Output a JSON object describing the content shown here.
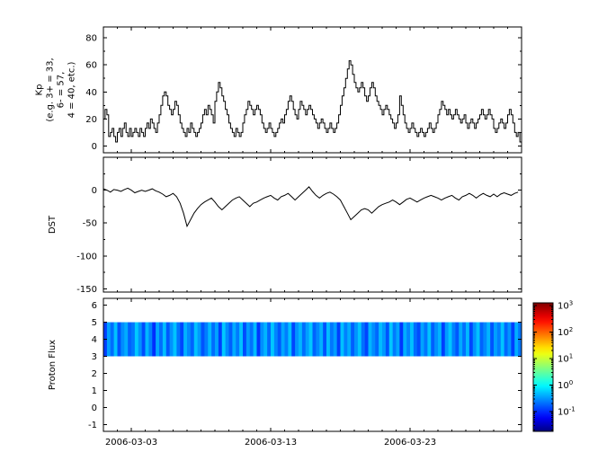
{
  "x_axis": {
    "start_date": "2006-03-01",
    "end_date": "2006-03-31",
    "span_days": 30,
    "major_tick_days": [
      2,
      12,
      22
    ],
    "major_tick_labels": [
      "2006-03-03",
      "2006-03-13",
      "2006-03-23"
    ]
  },
  "chart_data": [
    {
      "type": "line",
      "name": "kp-panel",
      "ylabel_lines": [
        "Kp",
        "(e.g. 3+ = 33,",
        "6- = 57,",
        "4 = 40, etc.)"
      ],
      "ylim": [
        -5,
        88
      ],
      "yticks": [
        0,
        20,
        40,
        60,
        80
      ],
      "y_minor_step": 10,
      "line_color": "#000000",
      "draw_style": "steps",
      "sample_interval_hours": 3,
      "values": [
        20,
        27,
        23,
        7,
        10,
        13,
        7,
        3,
        10,
        13,
        7,
        13,
        17,
        10,
        7,
        13,
        7,
        10,
        13,
        10,
        7,
        13,
        10,
        7,
        13,
        17,
        13,
        20,
        17,
        13,
        10,
        17,
        23,
        30,
        37,
        40,
        37,
        30,
        27,
        23,
        27,
        33,
        30,
        23,
        17,
        13,
        10,
        7,
        13,
        10,
        17,
        13,
        10,
        7,
        10,
        13,
        17,
        23,
        27,
        23,
        30,
        27,
        23,
        17,
        33,
        40,
        47,
        43,
        37,
        33,
        27,
        23,
        17,
        13,
        10,
        7,
        13,
        10,
        7,
        10,
        17,
        23,
        27,
        33,
        30,
        27,
        23,
        27,
        30,
        27,
        23,
        17,
        13,
        10,
        13,
        17,
        13,
        10,
        7,
        10,
        13,
        17,
        20,
        17,
        23,
        27,
        33,
        37,
        33,
        27,
        23,
        20,
        27,
        33,
        30,
        27,
        23,
        27,
        30,
        27,
        23,
        20,
        17,
        13,
        17,
        20,
        17,
        13,
        10,
        13,
        17,
        13,
        10,
        13,
        17,
        23,
        30,
        37,
        43,
        50,
        57,
        63,
        60,
        53,
        47,
        43,
        40,
        43,
        47,
        43,
        37,
        33,
        37,
        43,
        47,
        43,
        37,
        33,
        30,
        27,
        23,
        27,
        30,
        27,
        23,
        20,
        17,
        13,
        17,
        23,
        37,
        30,
        23,
        17,
        13,
        10,
        13,
        17,
        13,
        10,
        7,
        10,
        13,
        10,
        7,
        10,
        13,
        17,
        13,
        10,
        13,
        17,
        23,
        27,
        33,
        30,
        27,
        23,
        27,
        23,
        20,
        23,
        27,
        23,
        20,
        17,
        20,
        23,
        17,
        13,
        17,
        20,
        17,
        13,
        17,
        20,
        23,
        27,
        23,
        20,
        23,
        27,
        23,
        20,
        13,
        10,
        13,
        17,
        20,
        17,
        13,
        17,
        23,
        27,
        23,
        17,
        10,
        7,
        10,
        3
      ]
    },
    {
      "type": "line",
      "name": "dst-panel",
      "ylabel": "DST",
      "ylim": [
        -155,
        50
      ],
      "yticks": [
        0,
        -50,
        -100,
        -150
      ],
      "y_minor_step": 25,
      "line_color": "#000000",
      "draw_style": "linear",
      "sample_interval_hours": 6,
      "values": [
        2,
        0,
        -3,
        1,
        0,
        -2,
        1,
        3,
        0,
        -4,
        -2,
        0,
        -2,
        0,
        2,
        -1,
        -3,
        -6,
        -10,
        -8,
        -5,
        -10,
        -20,
        -35,
        -55,
        -45,
        -35,
        -28,
        -22,
        -18,
        -15,
        -12,
        -18,
        -25,
        -30,
        -25,
        -20,
        -15,
        -12,
        -10,
        -15,
        -20,
        -25,
        -20,
        -18,
        -15,
        -12,
        -10,
        -8,
        -12,
        -15,
        -10,
        -8,
        -5,
        -10,
        -15,
        -10,
        -5,
        0,
        5,
        -2,
        -8,
        -12,
        -8,
        -5,
        -3,
        -6,
        -10,
        -15,
        -25,
        -35,
        -45,
        -40,
        -35,
        -30,
        -28,
        -30,
        -35,
        -30,
        -25,
        -22,
        -20,
        -18,
        -15,
        -18,
        -22,
        -18,
        -14,
        -12,
        -15,
        -18,
        -15,
        -12,
        -10,
        -8,
        -10,
        -12,
        -15,
        -12,
        -10,
        -8,
        -12,
        -15,
        -10,
        -8,
        -5,
        -8,
        -12,
        -8,
        -5,
        -8,
        -10,
        -6,
        -10,
        -6,
        -4,
        -6,
        -8,
        -5,
        -3
      ]
    },
    {
      "type": "heatmap",
      "name": "proton-flux-panel",
      "ylabel": "Proton Flux",
      "ylim": [
        -1.4,
        6.4
      ],
      "yticks": [
        -1,
        0,
        1,
        2,
        3,
        4,
        5,
        6
      ],
      "y_minor_step": null,
      "band_y_range": [
        3,
        5
      ],
      "sample_interval_hours": 6,
      "flux_values": [
        0.12,
        0.35,
        0.2,
        0.5,
        0.15,
        0.28,
        0.4,
        0.18,
        0.22,
        0.55,
        0.3,
        0.14,
        0.45,
        0.25,
        0.1,
        0.38,
        0.2,
        0.48,
        0.16,
        0.3,
        0.52,
        0.22,
        0.13,
        0.42,
        0.27,
        0.18,
        0.5,
        0.32,
        0.15,
        0.24,
        0.46,
        0.2,
        0.36,
        0.12,
        0.55,
        0.28,
        0.17,
        0.4,
        0.23,
        0.5,
        0.14,
        0.33,
        0.21,
        0.47,
        0.11,
        0.29,
        0.44,
        0.19,
        0.53,
        0.26,
        0.16,
        0.38,
        0.24,
        0.5,
        0.13,
        0.31,
        0.45,
        0.2,
        0.35,
        0.55,
        0.18,
        0.27,
        0.42,
        0.15,
        0.48,
        0.22,
        0.34,
        0.12,
        0.5,
        0.25,
        0.4,
        0.17,
        0.3,
        0.52,
        0.21,
        0.13,
        0.44,
        0.28,
        0.19,
        0.47,
        0.32,
        0.15,
        0.54,
        0.23,
        0.37,
        0.11,
        0.41,
        0.26,
        0.49,
        0.2,
        0.14,
        0.36,
        0.22,
        0.51,
        0.17,
        0.29,
        0.43,
        0.12,
        0.33,
        0.53,
        0.25,
        0.16,
        0.39,
        0.21,
        0.46,
        0.13,
        0.3,
        0.5,
        0.18,
        0.27,
        0.44,
        0.15,
        0.35,
        0.24,
        0.52,
        0.19,
        0.31,
        0.12,
        0.41,
        0.22
      ],
      "colorbar": {
        "scale": "log",
        "colormap": "jet",
        "min_exponent": -1.75,
        "max_exponent": 3.1,
        "tick_exponents": [
          3,
          2,
          1,
          0,
          -1
        ],
        "tick_label_base": "10"
      }
    }
  ]
}
